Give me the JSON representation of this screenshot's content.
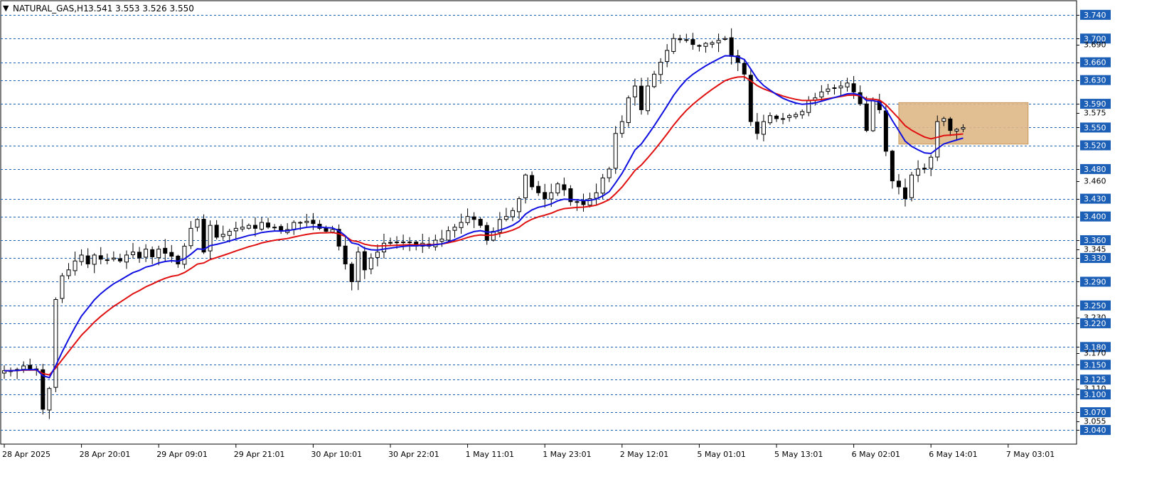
{
  "header": {
    "arrow": "▼",
    "symbol": "NATURAL_GAS,H1",
    "ohlc": "3.541 3.553 3.526 3.550"
  },
  "colors": {
    "frame": "#000000",
    "grid": "#1c5fb6",
    "price_label_bg": "#1c5fb6",
    "ma_fast": "#1010e0",
    "ma_slow": "#e01010",
    "zone": "#deb887",
    "candle_up_fill": "#ffffff",
    "candle_down_fill": "#000000"
  },
  "chart_data": {
    "type": "candlestick",
    "symbol": "NATURAL_GAS",
    "timeframe": "H1",
    "ylim": [
      3.032,
      3.765
    ],
    "highlighted_levels": [
      3.74,
      3.7,
      3.66,
      3.63,
      3.59,
      3.55,
      3.52,
      3.48,
      3.43,
      3.4,
      3.36,
      3.33,
      3.29,
      3.25,
      3.22,
      3.18,
      3.15,
      3.125,
      3.1,
      3.07,
      3.04
    ],
    "minor_levels": [
      3.69,
      3.575,
      3.46,
      3.345,
      3.23,
      3.17,
      3.11,
      3.055
    ],
    "y_tick_labels": [
      "3.740",
      "3.700",
      "3.690",
      "3.660",
      "3.630",
      "3.590",
      "3.575",
      "3.550",
      "3.520",
      "3.480",
      "3.460",
      "3.430",
      "3.400",
      "3.360",
      "3.345",
      "3.330",
      "3.290",
      "3.250",
      "3.230",
      "3.220",
      "3.180",
      "3.170",
      "3.150",
      "3.125",
      "3.110",
      "3.100",
      "3.070",
      "3.055",
      "3.040"
    ],
    "x_tick_labels": [
      {
        "bar": 0,
        "label": "28 Apr 2025"
      },
      {
        "bar": 12,
        "label": "28 Apr 20:01"
      },
      {
        "bar": 24,
        "label": "29 Apr 09:01"
      },
      {
        "bar": 36,
        "label": "29 Apr 21:01"
      },
      {
        "bar": 48,
        "label": "30 Apr 10:01"
      },
      {
        "bar": 60,
        "label": "30 Apr 22:01"
      },
      {
        "bar": 72,
        "label": "1 May 11:01"
      },
      {
        "bar": 84,
        "label": "1 May 23:01"
      },
      {
        "bar": 96,
        "label": "2 May 12:01"
      },
      {
        "bar": 108,
        "label": "5 May 01:01"
      },
      {
        "bar": 120,
        "label": "5 May 13:01"
      },
      {
        "bar": 132,
        "label": "6 May 02:01"
      },
      {
        "bar": 144,
        "label": "6 May 14:01"
      },
      {
        "bar": 156,
        "label": "7 May 03:01"
      }
    ],
    "close": [
      3.14,
      3.14,
      3.142,
      3.148,
      3.143,
      3.143,
      3.075,
      3.11,
      3.26,
      3.3,
      3.31,
      3.325,
      3.335,
      3.32,
      3.335,
      3.328,
      3.327,
      3.33,
      3.325,
      3.335,
      3.34,
      3.33,
      3.345,
      3.332,
      3.345,
      3.338,
      3.333,
      3.32,
      3.35,
      3.38,
      3.395,
      3.34,
      3.385,
      3.365,
      3.37,
      3.375,
      3.38,
      3.382,
      3.385,
      3.38,
      3.39,
      3.382,
      3.382,
      3.375,
      3.378,
      3.39,
      3.39,
      3.392,
      3.388,
      3.38,
      3.375,
      3.378,
      3.35,
      3.32,
      3.29,
      3.34,
      3.31,
      3.33,
      3.34,
      3.355,
      3.355,
      3.357,
      3.357,
      3.356,
      3.35,
      3.355,
      3.35,
      3.36,
      3.362,
      3.376,
      3.382,
      3.39,
      3.4,
      3.395,
      3.385,
      3.36,
      3.375,
      3.395,
      3.4,
      3.41,
      3.43,
      3.47,
      3.45,
      3.44,
      3.43,
      3.44,
      3.455,
      3.445,
      3.425,
      3.425,
      3.42,
      3.43,
      3.44,
      3.465,
      3.48,
      3.54,
      3.56,
      3.6,
      3.62,
      3.58,
      3.62,
      3.64,
      3.66,
      3.68,
      3.7,
      3.698,
      3.698,
      3.69,
      3.687,
      3.692,
      3.693,
      3.697,
      3.7,
      3.67,
      3.66,
      3.64,
      3.56,
      3.54,
      3.56,
      3.57,
      3.565,
      3.565,
      3.57,
      3.572,
      3.577,
      3.595,
      3.6,
      3.61,
      3.615,
      3.617,
      3.62,
      3.625,
      3.61,
      3.59,
      3.545,
      3.595,
      3.58,
      3.51,
      3.46,
      3.45,
      3.43,
      3.47,
      3.48,
      3.48,
      3.5,
      3.56,
      3.565,
      3.545,
      3.547,
      3.55
    ]
  }
}
